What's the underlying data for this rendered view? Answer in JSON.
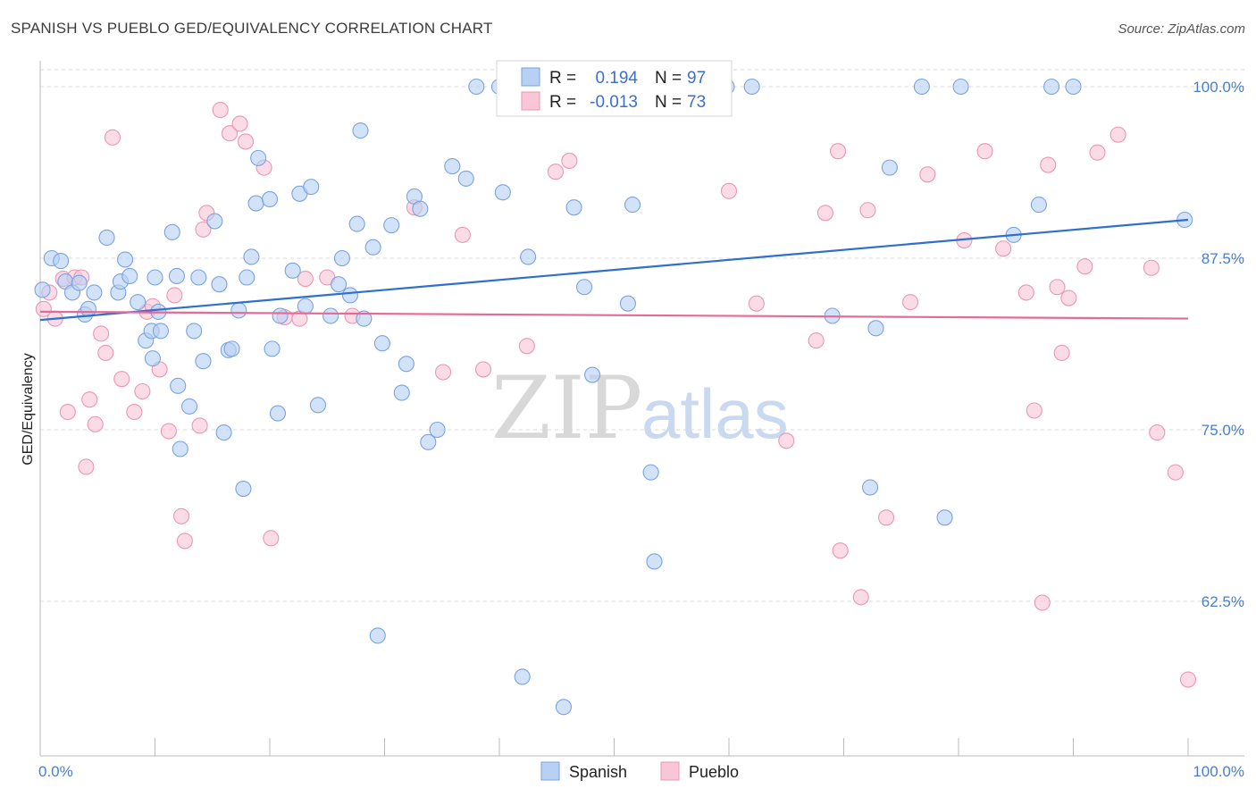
{
  "header": {
    "title": "SPANISH VS PUEBLO GED/EQUIVALENCY CORRELATION CHART",
    "source": "Source: ZipAtlas.com"
  },
  "watermark": {
    "zip": "ZIP",
    "atlas": "atlas"
  },
  "colors": {
    "spanish_fill": "#b7d0f3",
    "spanish_stroke": "#7aa3df",
    "spanish_line": "#2f6fcf",
    "pueblo_fill": "#f8c6d6",
    "pueblo_stroke": "#ea97b2",
    "pueblo_line": "#e56a95",
    "tick_label": "#4a7ecb",
    "grid": "#d9d9d9"
  },
  "legend": {
    "r_label": "R =",
    "n_label": "N =",
    "rows": [
      {
        "series": "Spanish",
        "r": "0.194",
        "n": "97"
      },
      {
        "series": "Pueblo",
        "r": "-0.013",
        "n": "73"
      }
    ]
  },
  "chart_data": {
    "type": "scatter",
    "title": "SPANISH VS PUEBLO GED/EQUIVALENCY CORRELATION CHART",
    "xlabel": "",
    "ylabel": "GED/Equivalency",
    "xlim": [
      0,
      100
    ],
    "ylim": [
      50.5,
      102.5
    ],
    "x_tick_labels": [
      {
        "value": 0,
        "label": "0.0%"
      },
      {
        "value": 100,
        "label": "100.0%"
      }
    ],
    "y_tick_labels": [
      {
        "value": 100,
        "label": "100.0%"
      },
      {
        "value": 87.5,
        "label": "87.5%"
      },
      {
        "value": 75,
        "label": "75.0%"
      },
      {
        "value": 62.5,
        "label": "62.5%"
      }
    ],
    "x_minor_ticks": [
      0,
      10,
      20,
      30,
      40,
      50,
      60,
      70,
      80,
      90,
      100
    ],
    "grid": true,
    "legend_position": "top-center",
    "series": [
      {
        "name": "Spanish",
        "trend": {
          "x": [
            0,
            100
          ],
          "y": [
            83.0,
            90.3
          ]
        },
        "points": [
          [
            0.2,
            85.2
          ],
          [
            1.0,
            87.5
          ],
          [
            1.8,
            87.3
          ],
          [
            2.2,
            85.8
          ],
          [
            2.8,
            85.0
          ],
          [
            3.4,
            85.7
          ],
          [
            3.9,
            83.4
          ],
          [
            4.2,
            83.8
          ],
          [
            4.7,
            85.0
          ],
          [
            5.8,
            89.0
          ],
          [
            6.8,
            85.0
          ],
          [
            7.0,
            85.8
          ],
          [
            7.4,
            87.4
          ],
          [
            7.8,
            86.2
          ],
          [
            8.5,
            84.3
          ],
          [
            9.2,
            81.5
          ],
          [
            9.7,
            82.2
          ],
          [
            9.8,
            80.2
          ],
          [
            10.0,
            86.1
          ],
          [
            10.3,
            83.6
          ],
          [
            10.5,
            82.2
          ],
          [
            11.5,
            89.4
          ],
          [
            11.9,
            86.2
          ],
          [
            12.0,
            78.2
          ],
          [
            12.2,
            73.6
          ],
          [
            13.0,
            76.7
          ],
          [
            13.4,
            82.2
          ],
          [
            13.8,
            86.1
          ],
          [
            14.2,
            80.0
          ],
          [
            15.2,
            90.2
          ],
          [
            15.6,
            85.6
          ],
          [
            16.0,
            74.8
          ],
          [
            16.4,
            80.8
          ],
          [
            16.7,
            80.9
          ],
          [
            17.3,
            83.7
          ],
          [
            17.7,
            70.7
          ],
          [
            18.0,
            86.1
          ],
          [
            18.4,
            87.6
          ],
          [
            18.8,
            91.5
          ],
          [
            19.0,
            94.8
          ],
          [
            20.0,
            91.8
          ],
          [
            20.2,
            80.9
          ],
          [
            20.7,
            76.2
          ],
          [
            20.9,
            83.3
          ],
          [
            22.0,
            86.6
          ],
          [
            22.6,
            92.2
          ],
          [
            23.1,
            84.0
          ],
          [
            23.6,
            92.7
          ],
          [
            24.2,
            76.8
          ],
          [
            25.3,
            83.3
          ],
          [
            26.0,
            85.6
          ],
          [
            26.3,
            87.5
          ],
          [
            27.0,
            84.8
          ],
          [
            27.6,
            90.0
          ],
          [
            27.9,
            96.8
          ],
          [
            28.2,
            83.1
          ],
          [
            29.0,
            88.3
          ],
          [
            29.4,
            60.0
          ],
          [
            29.8,
            81.3
          ],
          [
            30.6,
            89.9
          ],
          [
            31.5,
            77.7
          ],
          [
            31.9,
            79.8
          ],
          [
            32.6,
            92.0
          ],
          [
            33.1,
            91.1
          ],
          [
            33.8,
            74.1
          ],
          [
            34.6,
            75.0
          ],
          [
            35.9,
            94.2
          ],
          [
            37.1,
            93.3
          ],
          [
            38.0,
            100.0
          ],
          [
            40.0,
            100.0
          ],
          [
            40.3,
            92.3
          ],
          [
            42.0,
            57.0
          ],
          [
            42.5,
            87.6
          ],
          [
            45.6,
            54.8
          ],
          [
            46.5,
            91.2
          ],
          [
            47.4,
            85.4
          ],
          [
            48.1,
            79.0
          ],
          [
            51.2,
            84.2
          ],
          [
            51.6,
            91.4
          ],
          [
            53.2,
            71.9
          ],
          [
            53.5,
            65.4
          ],
          [
            55.8,
            100.0
          ],
          [
            59.8,
            100.0
          ],
          [
            62.0,
            100.0
          ],
          [
            69.0,
            83.3
          ],
          [
            72.3,
            70.8
          ],
          [
            72.8,
            82.4
          ],
          [
            74.0,
            94.1
          ],
          [
            76.8,
            100.0
          ],
          [
            78.8,
            68.6
          ],
          [
            80.2,
            100.0
          ],
          [
            84.8,
            89.2
          ],
          [
            87.0,
            91.4
          ],
          [
            88.1,
            100.0
          ],
          [
            90.0,
            100.0
          ],
          [
            99.7,
            90.3
          ]
        ]
      },
      {
        "name": "Pueblo",
        "trend": {
          "x": [
            0,
            100
          ],
          "y": [
            83.6,
            83.1
          ]
        },
        "points": [
          [
            0.3,
            83.8
          ],
          [
            0.8,
            85.0
          ],
          [
            1.3,
            83.1
          ],
          [
            2.0,
            86.0
          ],
          [
            2.4,
            76.3
          ],
          [
            3.0,
            86.1
          ],
          [
            3.6,
            86.1
          ],
          [
            4.0,
            72.3
          ],
          [
            4.3,
            77.2
          ],
          [
            4.8,
            75.4
          ],
          [
            5.3,
            82.0
          ],
          [
            5.7,
            80.6
          ],
          [
            6.3,
            96.3
          ],
          [
            7.1,
            78.7
          ],
          [
            8.2,
            76.3
          ],
          [
            8.9,
            77.8
          ],
          [
            9.3,
            83.6
          ],
          [
            9.8,
            84.0
          ],
          [
            10.4,
            79.4
          ],
          [
            11.2,
            74.9
          ],
          [
            11.7,
            84.8
          ],
          [
            12.3,
            68.7
          ],
          [
            12.6,
            66.9
          ],
          [
            13.9,
            75.3
          ],
          [
            14.2,
            89.6
          ],
          [
            14.5,
            90.8
          ],
          [
            15.7,
            98.3
          ],
          [
            16.5,
            96.6
          ],
          [
            17.4,
            97.3
          ],
          [
            17.9,
            96.0
          ],
          [
            19.5,
            94.1
          ],
          [
            20.1,
            67.1
          ],
          [
            21.3,
            83.2
          ],
          [
            22.6,
            83.1
          ],
          [
            23.1,
            86.0
          ],
          [
            25.0,
            86.1
          ],
          [
            27.2,
            83.3
          ],
          [
            32.6,
            91.2
          ],
          [
            35.1,
            79.2
          ],
          [
            36.8,
            89.2
          ],
          [
            38.6,
            79.4
          ],
          [
            42.4,
            81.1
          ],
          [
            44.9,
            93.8
          ],
          [
            46.1,
            94.6
          ],
          [
            60.0,
            92.4
          ],
          [
            62.4,
            84.2
          ],
          [
            65.0,
            74.2
          ],
          [
            67.6,
            81.5
          ],
          [
            68.4,
            90.8
          ],
          [
            69.5,
            95.3
          ],
          [
            69.7,
            66.2
          ],
          [
            71.5,
            62.8
          ],
          [
            72.1,
            91.0
          ],
          [
            73.7,
            68.6
          ],
          [
            75.8,
            84.3
          ],
          [
            77.3,
            93.6
          ],
          [
            80.5,
            88.8
          ],
          [
            82.3,
            95.3
          ],
          [
            83.9,
            88.2
          ],
          [
            85.9,
            85.0
          ],
          [
            86.6,
            76.4
          ],
          [
            87.3,
            62.4
          ],
          [
            87.8,
            94.3
          ],
          [
            88.6,
            85.4
          ],
          [
            89.0,
            80.6
          ],
          [
            89.6,
            84.6
          ],
          [
            91.0,
            86.9
          ],
          [
            92.1,
            95.2
          ],
          [
            93.9,
            96.5
          ],
          [
            96.8,
            86.8
          ],
          [
            97.3,
            74.8
          ],
          [
            98.9,
            71.9
          ],
          [
            100.0,
            56.8
          ]
        ]
      }
    ]
  }
}
